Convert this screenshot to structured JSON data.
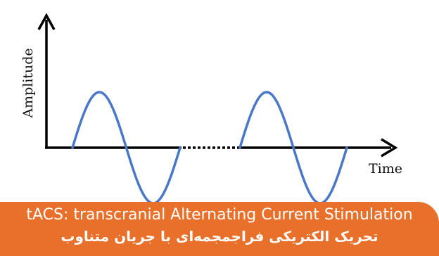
{
  "diagram": {
    "y_axis_label": "Amplitude",
    "x_axis_label": "Time",
    "axis_color": "#000000",
    "wave_color": "#4a78c8"
  },
  "caption": {
    "english": "tACS: transcranial Alternating Current Stimulation",
    "persian": "تحریک الکتریکی فراجمجمه‌ای با جریان متناوب",
    "background_color": "#e8702a",
    "text_color": "#ffffff"
  }
}
